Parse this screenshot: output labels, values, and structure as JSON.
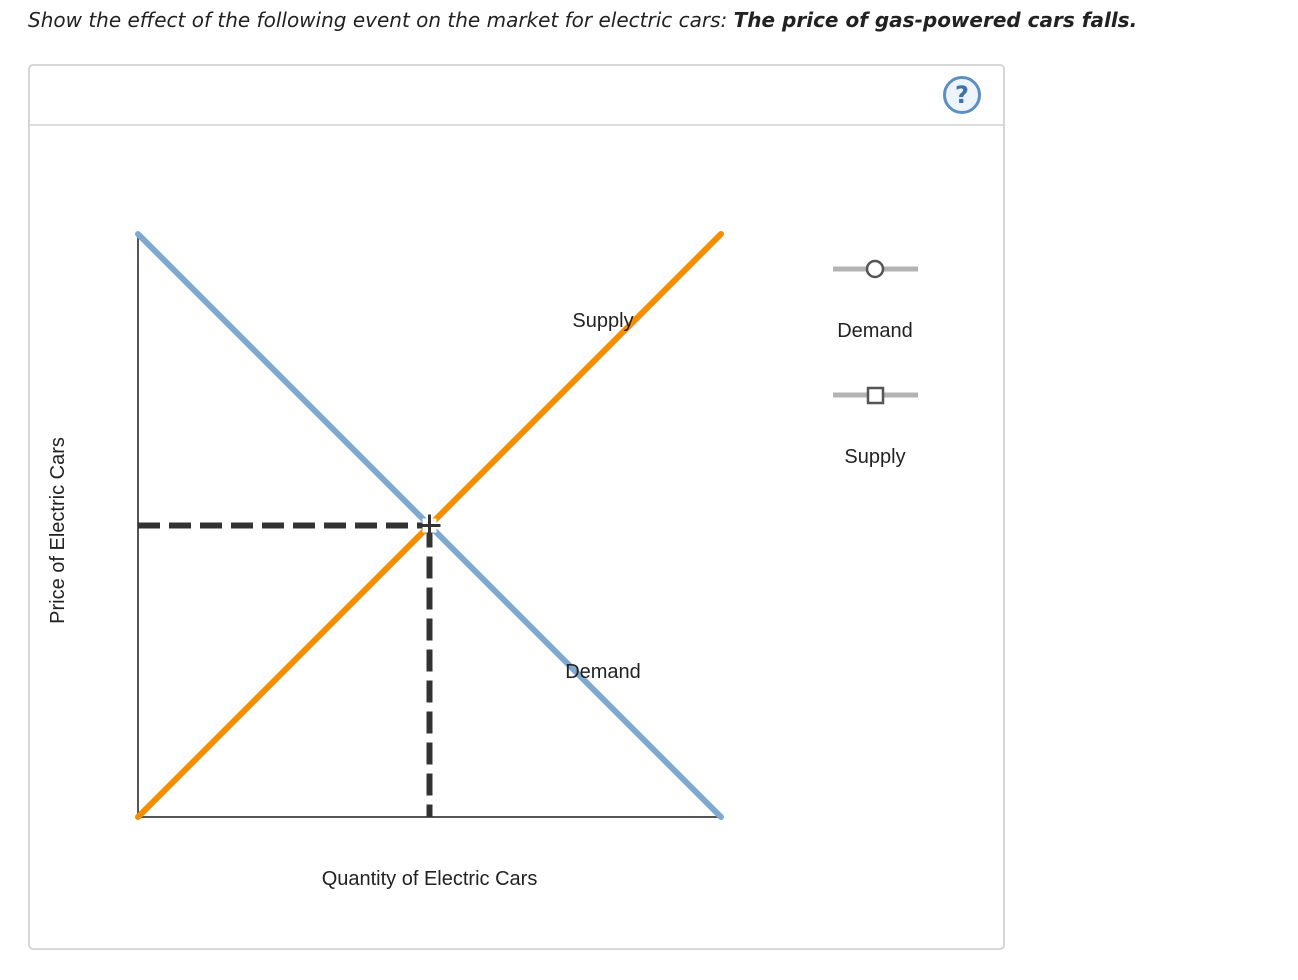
{
  "question": {
    "prefix": "Show the effect of the following event on the market for electric cars: ",
    "event": "The price of gas-powered cars falls."
  },
  "help": {
    "symbol": "?",
    "icon": "question-mark-icon"
  },
  "chart_data": {
    "type": "line",
    "title": "",
    "xlabel": "Quantity of Electric Cars",
    "ylabel": "Price of Electric Cars",
    "xlim": [
      0,
      10
    ],
    "ylim": [
      0,
      10
    ],
    "series": [
      {
        "name": "Demand",
        "x": [
          0,
          10
        ],
        "y": [
          10,
          0
        ],
        "color": "#7fa9cf"
      },
      {
        "name": "Supply",
        "x": [
          0,
          10
        ],
        "y": [
          0,
          10
        ],
        "color": "#f28e00"
      }
    ],
    "equilibrium": {
      "x": 5,
      "y": 5
    },
    "annotations": [
      {
        "text": "Supply",
        "series": "Supply"
      },
      {
        "text": "Demand",
        "series": "Demand"
      }
    ],
    "grid": false
  },
  "legend": {
    "items": [
      {
        "label": "Demand",
        "marker": "circle",
        "line_color": "#b3b3b3",
        "icon": "circle-handle-icon"
      },
      {
        "label": "Supply",
        "marker": "square",
        "line_color": "#b3b3b3",
        "icon": "square-handle-icon"
      }
    ]
  },
  "colors": {
    "demand": "#7fa9cf",
    "supply": "#f28e00",
    "equilibrium": "#333333",
    "axis": "#555555",
    "border": "#d6d6d6",
    "help": "#5b8fc4"
  }
}
